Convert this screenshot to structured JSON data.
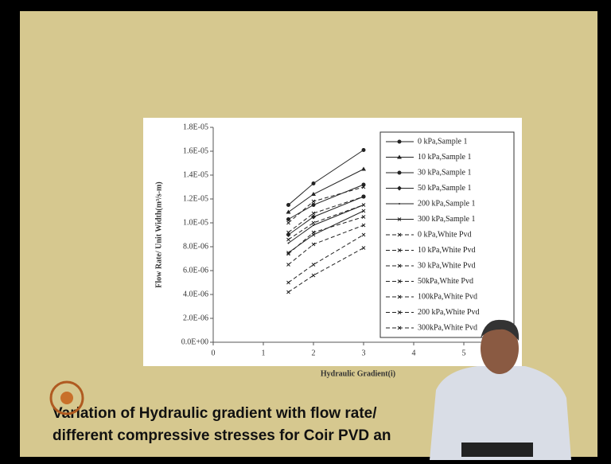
{
  "chart_data": {
    "type": "line",
    "xlabel": "Hydraulic Gradient(i)",
    "ylabel": "Flow Rate/ Unit Width(m³/s-m)",
    "caption": [
      "Variation of Hydraulic gradient with flow rate/",
      "different compressive stresses for Coir PVD an"
    ],
    "x": [
      1.5,
      2,
      3
    ],
    "xlim": [
      0,
      6
    ],
    "xticks": [
      0,
      1,
      2,
      3,
      4,
      5
    ],
    "ylim": [
      0,
      1.8e-05
    ],
    "yticks": [
      {
        "value": 0,
        "label": "0.0E+00"
      },
      {
        "value": 2e-06,
        "label": "2.0E-06"
      },
      {
        "value": 4e-06,
        "label": "4.0E-06"
      },
      {
        "value": 6e-06,
        "label": "6.0E-06"
      },
      {
        "value": 8e-06,
        "label": "8.0E-06"
      },
      {
        "value": 1e-05,
        "label": "1.0E-05"
      },
      {
        "value": 1.2e-05,
        "label": "1.2E-05"
      },
      {
        "value": 1.4e-05,
        "label": "1.4E-05"
      },
      {
        "value": 1.6e-05,
        "label": "1.6E-05"
      },
      {
        "value": 1.8e-05,
        "label": "1.8E-05"
      }
    ],
    "series": [
      {
        "name": "0 kPa,Sample 1",
        "color": "#222",
        "dash": false,
        "values": [
          1.15e-05,
          1.33e-05,
          1.61e-05
        ]
      },
      {
        "name": "10 kPa,Sample 1",
        "color": "#222",
        "dash": false,
        "values": [
          1.09e-05,
          1.24e-05,
          1.45e-05
        ]
      },
      {
        "name": "30 kPa,Sample 1",
        "color": "#222",
        "dash": false,
        "values": [
          1.03e-05,
          1.15e-05,
          1.32e-05
        ]
      },
      {
        "name": "50 kPa,Sample 1",
        "color": "#222",
        "dash": false,
        "values": [
          9e-06,
          1.05e-05,
          1.22e-05
        ]
      },
      {
        "name": "200 kPa,Sample 1",
        "color": "#222",
        "dash": false,
        "values": [
          8.3e-06,
          9.8e-06,
          1.15e-05
        ]
      },
      {
        "name": "300 kPa,Sample 1",
        "color": "#222",
        "dash": false,
        "values": [
          7.5e-06,
          9e-06,
          1.1e-05
        ]
      },
      {
        "name": "0 kPa,White Pvd",
        "color": "#222",
        "dash": true,
        "values": [
          1e-05,
          1.18e-05,
          1.3e-05
        ]
      },
      {
        "name": "10 kPa,White Pvd",
        "color": "#222",
        "dash": true,
        "values": [
          9.2e-06,
          1.08e-05,
          1.22e-05
        ]
      },
      {
        "name": "30 kPa,White Pvd",
        "color": "#222",
        "dash": true,
        "values": [
          8.6e-06,
          1e-05,
          1.15e-05
        ]
      },
      {
        "name": "50kPa,White Pvd",
        "color": "#222",
        "dash": true,
        "values": [
          7.4e-06,
          9.2e-06,
          1.05e-05
        ]
      },
      {
        "name": "100kPa,White Pvd",
        "color": "#222",
        "dash": true,
        "values": [
          6.5e-06,
          8.2e-06,
          9.8e-06
        ]
      },
      {
        "name": "200 kPa,White Pvd",
        "color": "#222",
        "dash": true,
        "values": [
          5e-06,
          6.5e-06,
          9e-06
        ]
      },
      {
        "name": "300kPa,White Pvd",
        "color": "#222",
        "dash": true,
        "values": [
          4.2e-06,
          5.6e-06,
          7.9e-06
        ]
      }
    ]
  }
}
